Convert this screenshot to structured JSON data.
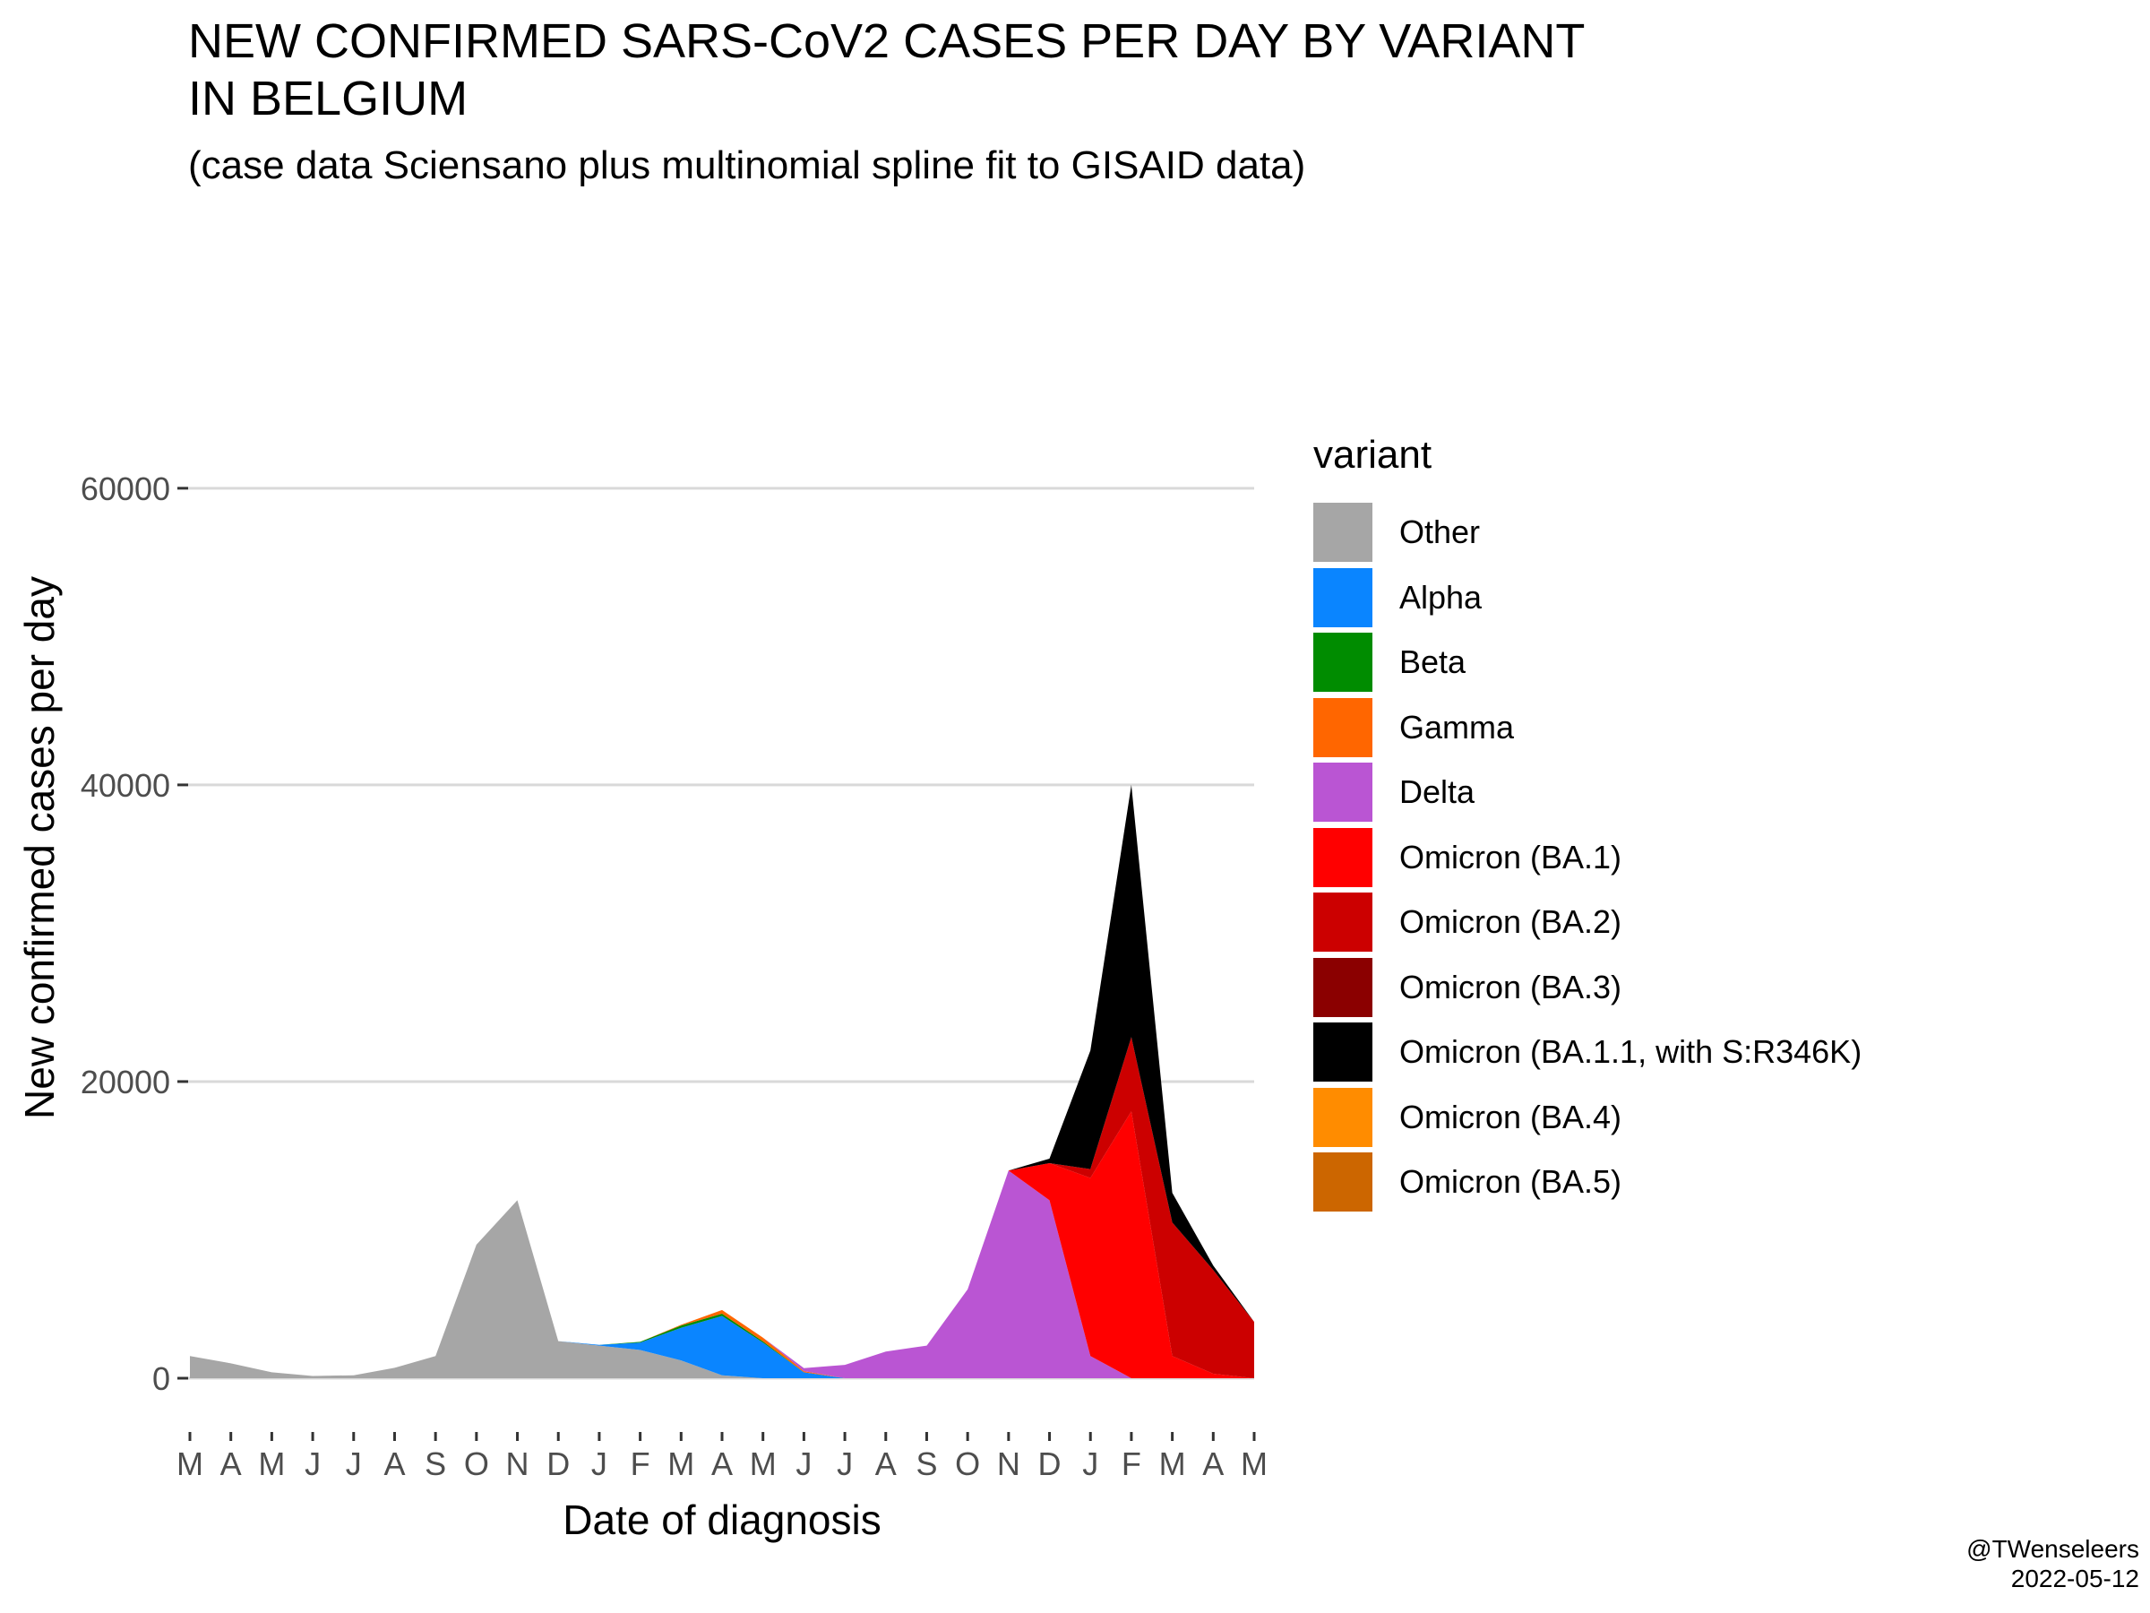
{
  "title_lines": [
    "NEW CONFIRMED SARS-CoV2 CASES PER DAY BY VARIANT",
    "IN BELGIUM"
  ],
  "subtitle": "(case data Sciensano plus multinomial spline fit to GISAID data)",
  "credit": {
    "author": "@TWenseleers",
    "date": "2022-05-12"
  },
  "legend": {
    "title": "variant",
    "items": [
      {
        "label": "Other",
        "color": "#A6A6A6"
      },
      {
        "label": "Alpha",
        "color": "#0A85FF"
      },
      {
        "label": "Beta",
        "color": "#008C00"
      },
      {
        "label": "Gamma",
        "color": "#FF6600"
      },
      {
        "label": "Delta",
        "color": "#BA55D3"
      },
      {
        "label": "Omicron (BA.1)",
        "color": "#FF0000"
      },
      {
        "label": "Omicron (BA.2)",
        "color": "#CC0000"
      },
      {
        "label": "Omicron (BA.3)",
        "color": "#8B0000"
      },
      {
        "label": "Omicron (BA.1.1, with S:R346K)",
        "color": "#000000"
      },
      {
        "label": "Omicron (BA.4)",
        "color": "#FF8C00"
      },
      {
        "label": "Omicron (BA.5)",
        "color": "#CC6600"
      }
    ]
  },
  "chart_data": {
    "type": "area",
    "stacked": true,
    "title": "NEW CONFIRMED SARS-CoV2 CASES PER DAY BY VARIANT IN BELGIUM",
    "xlabel": "Date of diagnosis",
    "ylabel": "New confirmed cases per day",
    "ylim": [
      0,
      76000
    ],
    "y_ticks": [
      0,
      20000,
      40000,
      60000
    ],
    "x_tick_labels": [
      "M",
      "A",
      "M",
      "J",
      "J",
      "A",
      "S",
      "O",
      "N",
      "D",
      "J",
      "F",
      "M",
      "A",
      "M",
      "J",
      "J",
      "A",
      "S",
      "O",
      "N",
      "D",
      "J",
      "F",
      "M",
      "A",
      "M"
    ],
    "grid": "horizontal major",
    "legend_position": "right",
    "x_months_note": "monthly values, 2020-03 to 2022-05; approx. mid-month daily cases by variant",
    "series": [
      {
        "name": "Other",
        "values": [
          1500,
          1000,
          400,
          150,
          200,
          700,
          1500,
          9000,
          12000,
          2500,
          2200,
          1900,
          1200,
          200,
          0,
          0,
          0,
          0,
          0,
          0,
          0,
          0,
          0,
          0,
          0,
          0,
          0
        ]
      },
      {
        "name": "Alpha",
        "values": [
          0,
          0,
          0,
          0,
          0,
          0,
          0,
          0,
          0,
          0,
          50,
          500,
          2200,
          4000,
          2400,
          400,
          0,
          0,
          0,
          0,
          0,
          0,
          0,
          0,
          0,
          0,
          0
        ]
      },
      {
        "name": "Beta",
        "values": [
          0,
          0,
          0,
          0,
          0,
          0,
          0,
          0,
          0,
          0,
          0,
          50,
          150,
          150,
          80,
          0,
          0,
          0,
          0,
          0,
          0,
          0,
          0,
          0,
          0,
          0,
          0
        ]
      },
      {
        "name": "Gamma",
        "values": [
          0,
          0,
          0,
          0,
          0,
          0,
          0,
          0,
          0,
          0,
          0,
          0,
          50,
          250,
          250,
          80,
          0,
          0,
          0,
          0,
          0,
          0,
          0,
          0,
          0,
          0,
          0
        ]
      },
      {
        "name": "Delta",
        "values": [
          0,
          0,
          0,
          0,
          0,
          0,
          0,
          0,
          0,
          0,
          0,
          0,
          0,
          0,
          0,
          200,
          900,
          1800,
          2200,
          6000,
          14000,
          12000,
          1500,
          0,
          0,
          0,
          0
        ]
      },
      {
        "name": "Omicron (BA.1)",
        "values": [
          0,
          0,
          0,
          0,
          0,
          0,
          0,
          0,
          0,
          0,
          0,
          0,
          0,
          0,
          0,
          0,
          0,
          0,
          0,
          0,
          0,
          2500,
          12000,
          18000,
          1500,
          300,
          0
        ]
      },
      {
        "name": "Omicron (BA.2)",
        "values": [
          0,
          0,
          0,
          0,
          0,
          0,
          0,
          0,
          0,
          0,
          0,
          0,
          0,
          0,
          0,
          0,
          0,
          0,
          0,
          0,
          0,
          0,
          600,
          5000,
          9000,
          7000,
          3800
        ]
      },
      {
        "name": "Omicron (BA.3)",
        "values": [
          0,
          0,
          0,
          0,
          0,
          0,
          0,
          0,
          0,
          0,
          0,
          0,
          0,
          0,
          0,
          0,
          0,
          0,
          0,
          0,
          0,
          0,
          0,
          0,
          0,
          0,
          0
        ]
      },
      {
        "name": "Omicron (BA.1.1, with S:R346K)",
        "values": [
          0,
          0,
          0,
          0,
          0,
          0,
          0,
          0,
          0,
          0,
          0,
          0,
          0,
          0,
          0,
          0,
          0,
          0,
          0,
          0,
          0,
          300,
          8000,
          17000,
          2000,
          300,
          0
        ]
      },
      {
        "name": "Omicron (BA.4)",
        "values": [
          0,
          0,
          0,
          0,
          0,
          0,
          0,
          0,
          0,
          0,
          0,
          0,
          0,
          0,
          0,
          0,
          0,
          0,
          0,
          0,
          0,
          0,
          0,
          0,
          0,
          0,
          0
        ]
      },
      {
        "name": "Omicron (BA.5)",
        "values": [
          0,
          0,
          0,
          0,
          0,
          0,
          0,
          0,
          0,
          0,
          0,
          0,
          0,
          0,
          0,
          0,
          0,
          0,
          0,
          0,
          0,
          0,
          0,
          0,
          0,
          0,
          0
        ]
      }
    ]
  }
}
